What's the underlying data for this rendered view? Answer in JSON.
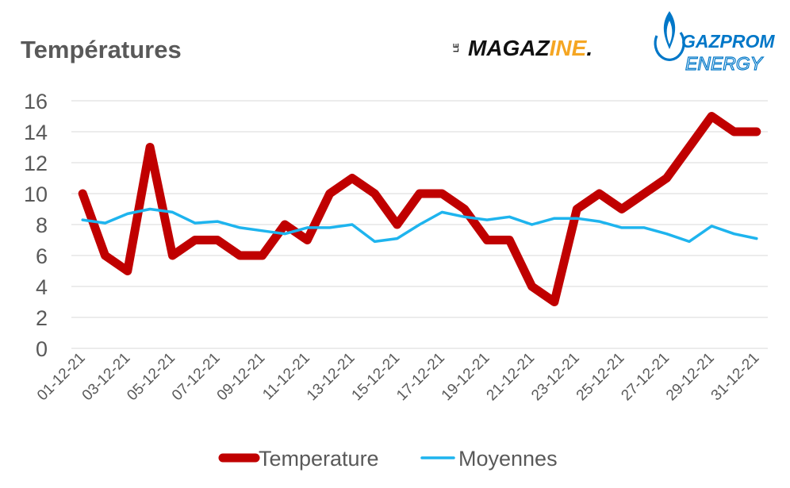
{
  "logos": {
    "magazine": {
      "le": "LE",
      "mag": "MAGAZ",
      "ine": "INE",
      "dot": "."
    },
    "gazprom": {
      "line1": "GAZPROM",
      "line2": "ENERGY"
    }
  },
  "colors": {
    "temperature": "#C00000",
    "moyennes": "#1EB4EE",
    "text": "#595959",
    "grid": "#D9D9D9",
    "gazprom_blue": "#0077C8",
    "magazine_orange": "#F5A623"
  },
  "chart_data": {
    "type": "line",
    "title": "Températures",
    "x": [
      "01-12-21",
      "02-12-21",
      "03-12-21",
      "04-12-21",
      "05-12-21",
      "06-12-21",
      "07-12-21",
      "08-12-21",
      "09-12-21",
      "10-12-21",
      "11-12-21",
      "12-12-21",
      "13-12-21",
      "14-12-21",
      "15-12-21",
      "16-12-21",
      "17-12-21",
      "18-12-21",
      "19-12-21",
      "20-12-21",
      "21-12-21",
      "22-12-21",
      "23-12-21",
      "24-12-21",
      "25-12-21",
      "26-12-21",
      "27-12-21",
      "28-12-21",
      "29-12-21",
      "30-12-21",
      "31-12-21"
    ],
    "tick_labels": [
      "01-12-21",
      "03-12-21",
      "05-12-21",
      "07-12-21",
      "09-12-21",
      "11-12-21",
      "13-12-21",
      "15-12-21",
      "17-12-21",
      "19-12-21",
      "21-12-21",
      "23-12-21",
      "25-12-21",
      "27-12-21",
      "29-12-21",
      "31-12-21"
    ],
    "series": [
      {
        "name": "Temperature",
        "values": [
          10,
          6,
          5,
          13,
          6,
          7,
          7,
          6,
          6,
          8,
          7,
          10,
          11,
          10,
          8,
          10,
          10,
          9,
          7,
          7,
          4,
          3,
          9,
          10,
          9,
          10,
          11,
          13,
          15,
          14,
          14
        ]
      },
      {
        "name": "Moyennes",
        "values": [
          8.3,
          8.1,
          8.7,
          9.0,
          8.8,
          8.1,
          8.2,
          7.8,
          7.6,
          7.4,
          7.8,
          7.8,
          8.0,
          6.9,
          7.1,
          8.0,
          8.8,
          8.5,
          8.3,
          8.5,
          8.0,
          8.4,
          8.4,
          8.2,
          7.8,
          7.8,
          7.4,
          6.9,
          7.9,
          7.4,
          7.1
        ]
      }
    ],
    "yticks": [
      0,
      2,
      4,
      6,
      8,
      10,
      12,
      14,
      16
    ],
    "ylim": [
      0,
      16
    ],
    "grid": true,
    "legend": "bottom"
  }
}
